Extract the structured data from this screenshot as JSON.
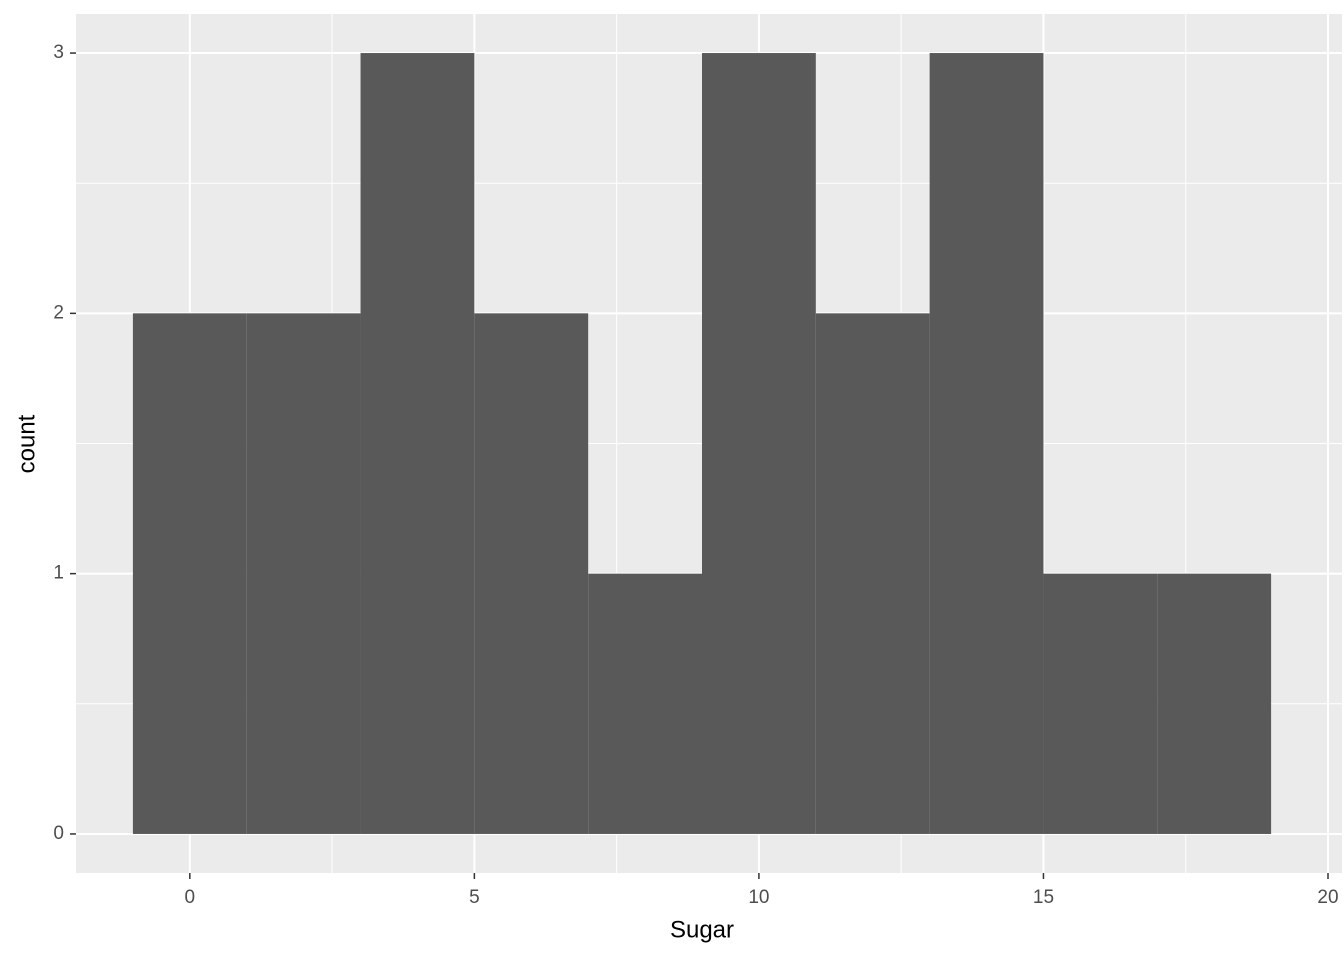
{
  "chart_data": {
    "type": "histogram",
    "x_label": "Sugar",
    "y_label": "count",
    "bins": [
      -1,
      1,
      3,
      5,
      7,
      9,
      11,
      13,
      15,
      17,
      19
    ],
    "values": [
      2,
      2,
      3,
      2,
      1,
      3,
      2,
      3,
      1,
      1
    ],
    "color": "#595959",
    "xlim": [
      -2,
      20
    ],
    "xticks": [
      0,
      5,
      10,
      15,
      20
    ],
    "ylim": [
      -0.15,
      3.15
    ],
    "yticks": [
      0,
      1,
      2,
      3
    ],
    "grid": true
  }
}
